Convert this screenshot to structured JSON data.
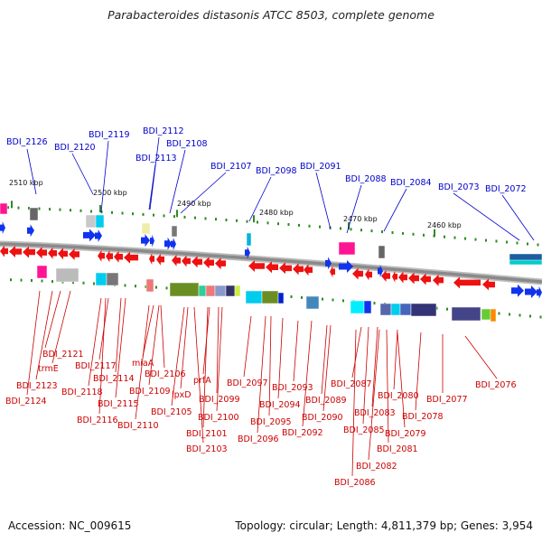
{
  "title": "Parabacteroides distasonis ATCC 8503, complete genome",
  "footer": {
    "accession": "Accession: NC_009615",
    "summary": "Topology: circular; Length: 4,811,379 bp; Genes: 3,954"
  },
  "colors": {
    "backbone": "#8a8a8a",
    "reverse_gene": "#ee1111",
    "forward_gene": "#1133ee",
    "tick": "#2e8b22",
    "label_forward": "#0000cc",
    "label_reverse": "#cc0000"
  },
  "position_markers": [
    {
      "label": "2510 kbp"
    },
    {
      "label": "2500 kbp"
    },
    {
      "label": "2490 kbp"
    },
    {
      "label": "2480 kbp"
    },
    {
      "label": "2470 kbp"
    },
    {
      "label": "2460 kbp"
    }
  ],
  "forward_labels": [
    {
      "text": "BDI_2126"
    },
    {
      "text": "BDI_2120"
    },
    {
      "text": "BDI_2119"
    },
    {
      "text": "BDI_2112"
    },
    {
      "text": "BDI_2113"
    },
    {
      "text": "BDI_2108"
    },
    {
      "text": "BDI_2107"
    },
    {
      "text": "BDI_2098"
    },
    {
      "text": "BDI_2091"
    },
    {
      "text": "BDI_2088"
    },
    {
      "text": "BDI_2084"
    },
    {
      "text": "BDI_2073"
    },
    {
      "text": "BDI_2072"
    }
  ],
  "reverse_labels": [
    {
      "text": "BDI_2121"
    },
    {
      "text": "trmE"
    },
    {
      "text": "BDI_2123"
    },
    {
      "text": "BDI_2124"
    },
    {
      "text": "BDI_2117"
    },
    {
      "text": "BDI_2118"
    },
    {
      "text": "BDI_2114"
    },
    {
      "text": "BDI_2115"
    },
    {
      "text": "BDI_2116"
    },
    {
      "text": "miaA"
    },
    {
      "text": "BDI_2106"
    },
    {
      "text": "BDI_2109"
    },
    {
      "text": "BDI_2110"
    },
    {
      "text": "lpxD"
    },
    {
      "text": "BDI_2105"
    },
    {
      "text": "prfA"
    },
    {
      "text": "BDI_2099"
    },
    {
      "text": "BDI_2100"
    },
    {
      "text": "BDI_2101"
    },
    {
      "text": "BDI_2103"
    },
    {
      "text": "BDI_2097"
    },
    {
      "text": "BDI_2095"
    },
    {
      "text": "BDI_2096"
    },
    {
      "text": "BDI_2094"
    },
    {
      "text": "BDI_2093"
    },
    {
      "text": "BDI_2092"
    },
    {
      "text": "BDI_2089"
    },
    {
      "text": "BDI_2090"
    },
    {
      "text": "BDI_2087"
    },
    {
      "text": "BDI_2083"
    },
    {
      "text": "BDI_2085"
    },
    {
      "text": "BDI_2080"
    },
    {
      "text": "BDI_2081"
    },
    {
      "text": "BDI_2082"
    },
    {
      "text": "BDI_2086"
    },
    {
      "text": "BDI_2078"
    },
    {
      "text": "BDI_2079"
    },
    {
      "text": "BDI_2077"
    },
    {
      "text": "BDI_2076"
    }
  ]
}
